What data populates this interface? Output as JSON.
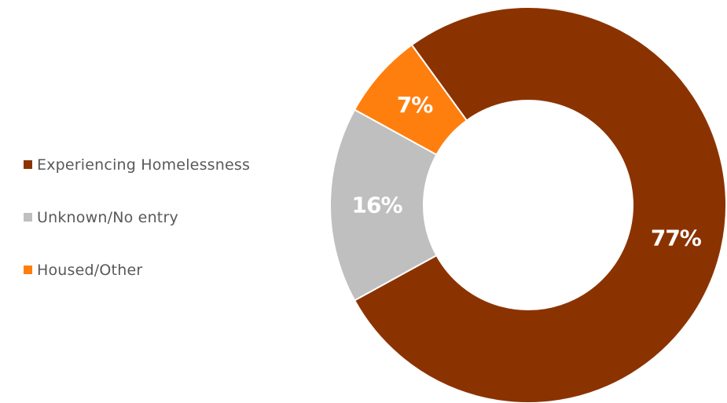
{
  "chart_data": {
    "type": "pie",
    "donut": true,
    "categories": [
      "Experiencing Homelessness",
      "Unknown/No entry",
      "Housed/Other"
    ],
    "values": [
      77,
      16,
      7
    ],
    "data_labels": [
      "77%",
      "16%",
      "7%"
    ],
    "colors": [
      "#8B3300",
      "#BFBFBF",
      "#FF7F0E"
    ],
    "legend_position": "left"
  }
}
